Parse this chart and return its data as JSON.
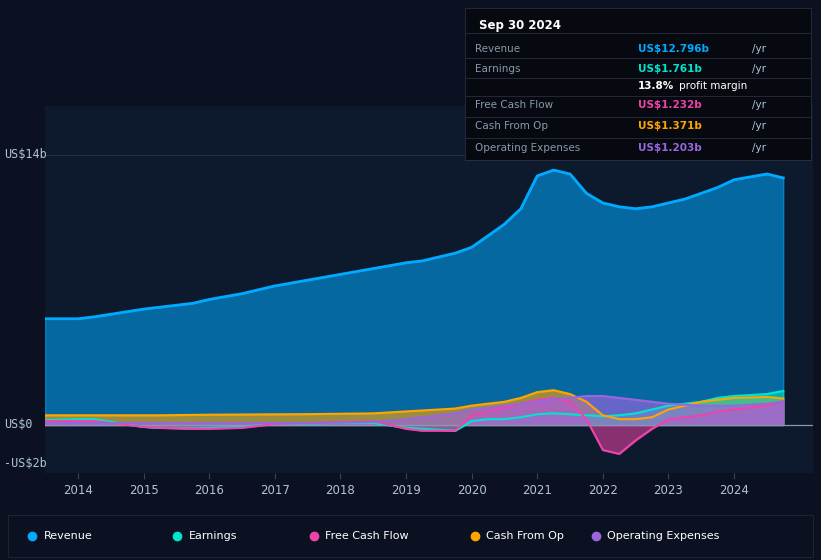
{
  "bg_color": "#0b1120",
  "plot_bg_color": "#0d1a2e",
  "title_box": {
    "date": "Sep 30 2024",
    "rows": [
      {
        "label": "Revenue",
        "value": "US$12.796b",
        "suffix": " /yr",
        "value_color": "#00aaff"
      },
      {
        "label": "Earnings",
        "value": "US$1.761b",
        "suffix": " /yr",
        "value_color": "#00e5cc"
      },
      {
        "label": "",
        "value": "13.8%",
        "suffix": " profit margin",
        "value_color": "#ffffff"
      },
      {
        "label": "Free Cash Flow",
        "value": "US$1.232b",
        "suffix": " /yr",
        "value_color": "#ee44aa"
      },
      {
        "label": "Cash From Op",
        "value": "US$1.371b",
        "suffix": " /yr",
        "value_color": "#ffa500"
      },
      {
        "label": "Operating Expenses",
        "value": "US$1.203b",
        "suffix": " /yr",
        "value_color": "#9966dd"
      }
    ]
  },
  "ylabel_top": "US$14b",
  "ylabel_zero": "US$0",
  "ylabel_neg": "-US$2b",
  "ylim": [
    -2.5,
    16.5
  ],
  "years": [
    2013.5,
    2014.0,
    2014.25,
    2015.0,
    2015.25,
    2015.75,
    2016.0,
    2016.5,
    2017.0,
    2017.5,
    2018.0,
    2018.5,
    2019.0,
    2019.25,
    2019.5,
    2019.75,
    2020.0,
    2020.25,
    2020.5,
    2020.75,
    2021.0,
    2021.25,
    2021.5,
    2021.75,
    2022.0,
    2022.25,
    2022.5,
    2022.75,
    2023.0,
    2023.25,
    2023.5,
    2023.75,
    2024.0,
    2024.5,
    2024.75
  ],
  "revenue": [
    5.5,
    5.5,
    5.6,
    6.0,
    6.1,
    6.3,
    6.5,
    6.8,
    7.2,
    7.5,
    7.8,
    8.1,
    8.4,
    8.5,
    8.7,
    8.9,
    9.2,
    9.8,
    10.4,
    11.2,
    12.9,
    13.2,
    13.0,
    12.0,
    11.5,
    11.3,
    11.2,
    11.3,
    11.5,
    11.7,
    12.0,
    12.3,
    12.7,
    13.0,
    12.796
  ],
  "earnings": [
    0.25,
    0.3,
    0.3,
    -0.1,
    -0.15,
    -0.18,
    -0.15,
    -0.1,
    0.05,
    0.08,
    0.1,
    0.1,
    -0.15,
    -0.2,
    -0.25,
    -0.3,
    0.2,
    0.3,
    0.3,
    0.4,
    0.55,
    0.6,
    0.55,
    0.5,
    0.45,
    0.5,
    0.6,
    0.8,
    1.0,
    1.1,
    1.2,
    1.4,
    1.5,
    1.6,
    1.761
  ],
  "free_cash_flow": [
    0.2,
    0.2,
    0.2,
    -0.1,
    -0.15,
    -0.2,
    -0.2,
    -0.15,
    0.05,
    0.1,
    0.15,
    0.2,
    -0.2,
    -0.3,
    -0.3,
    -0.3,
    0.5,
    0.7,
    0.9,
    1.1,
    1.3,
    1.4,
    1.2,
    0.3,
    -1.3,
    -1.5,
    -0.8,
    -0.2,
    0.3,
    0.4,
    0.5,
    0.7,
    0.8,
    1.0,
    1.232
  ],
  "cash_from_op": [
    0.5,
    0.5,
    0.5,
    0.5,
    0.5,
    0.52,
    0.53,
    0.54,
    0.55,
    0.56,
    0.58,
    0.6,
    0.7,
    0.75,
    0.8,
    0.85,
    1.0,
    1.1,
    1.2,
    1.4,
    1.7,
    1.8,
    1.6,
    1.2,
    0.5,
    0.3,
    0.3,
    0.4,
    0.8,
    1.0,
    1.2,
    1.3,
    1.4,
    1.45,
    1.371
  ],
  "operating_expenses": [
    0.08,
    0.1,
    0.1,
    0.1,
    0.1,
    0.1,
    0.1,
    0.1,
    0.1,
    0.1,
    0.12,
    0.15,
    0.3,
    0.4,
    0.5,
    0.6,
    0.8,
    0.9,
    1.0,
    1.1,
    1.2,
    1.35,
    1.4,
    1.5,
    1.5,
    1.4,
    1.3,
    1.2,
    1.1,
    1.05,
    1.0,
    1.0,
    1.0,
    1.1,
    1.203
  ],
  "revenue_color": "#00aaff",
  "earnings_color": "#00e5cc",
  "free_cash_flow_color": "#ee44aa",
  "cash_from_op_color": "#ffa500",
  "operating_expenses_color": "#9966dd",
  "grid_color": "#1e3050",
  "text_color": "#8899aa",
  "text_color_bright": "#b0c4d8",
  "legend_bg": "#111827"
}
